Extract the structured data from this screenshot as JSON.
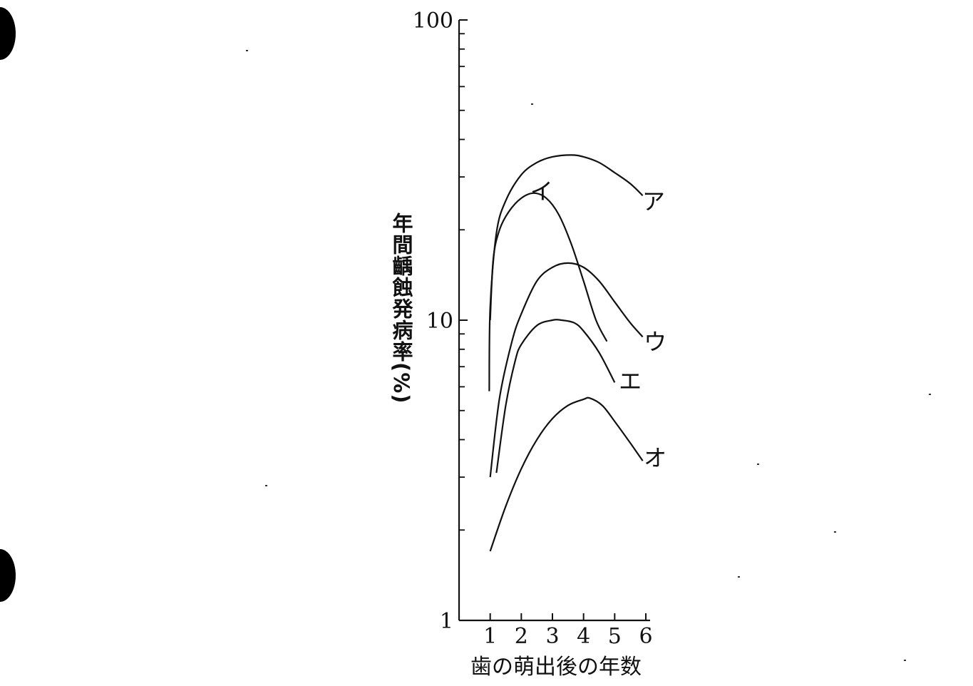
{
  "chart_data": {
    "type": "line",
    "title": "",
    "xlabel": "歯の萌出後の年数",
    "ylabel": "年間齲蝕発病率(%)",
    "y_scale": "log",
    "ylim": [
      1,
      100
    ],
    "xlim": [
      0,
      6.1
    ],
    "x_ticks": [
      1,
      2,
      3,
      4,
      5,
      6
    ],
    "x_tick_labels": [
      "1",
      "2",
      "3",
      "4",
      "5",
      "6"
    ],
    "y_tick_labels": [
      {
        "value": 1,
        "label": "1"
      },
      {
        "value": 10,
        "label": "10"
      },
      {
        "value": 100,
        "label": "100"
      }
    ],
    "y_minor_ticks": [
      2,
      3,
      4,
      5,
      6,
      7,
      8,
      9,
      20,
      30,
      40,
      50,
      60,
      70,
      80,
      90
    ],
    "grid": false,
    "series": [
      {
        "name": "ア",
        "x": [
          0.97,
          1.0,
          1.2,
          1.5,
          2.0,
          2.5,
          3.0,
          3.6,
          4.0,
          4.5,
          5.0,
          5.5,
          5.9
        ],
        "y": [
          5.8,
          11.0,
          19.5,
          25.0,
          30.5,
          33.5,
          35.0,
          35.5,
          35.0,
          33.5,
          31.0,
          28.5,
          26.0
        ]
      },
      {
        "name": "イ",
        "x": [
          1.0,
          1.1,
          1.3,
          1.6,
          2.0,
          2.4,
          2.8,
          3.2,
          3.6,
          4.0,
          4.4,
          4.75
        ],
        "y": [
          10.0,
          16.0,
          20.0,
          23.0,
          25.5,
          26.5,
          25.5,
          22.5,
          18.0,
          13.5,
          10.0,
          8.5
        ]
      },
      {
        "name": "ウ",
        "x": [
          1.0,
          1.3,
          1.7,
          2.0,
          2.5,
          3.0,
          3.5,
          4.0,
          4.5,
          5.0,
          5.5,
          5.9
        ],
        "y": [
          3.0,
          5.5,
          8.5,
          10.5,
          13.5,
          15.0,
          15.5,
          15.0,
          13.5,
          11.5,
          9.8,
          8.8
        ]
      },
      {
        "name": "エ",
        "x": [
          1.2,
          1.5,
          1.8,
          2.0,
          2.5,
          3.0,
          3.3,
          3.7,
          4.0,
          4.5,
          5.0
        ],
        "y": [
          3.1,
          5.2,
          7.3,
          8.3,
          9.6,
          10.0,
          10.0,
          9.8,
          9.2,
          7.8,
          6.2
        ]
      },
      {
        "name": "オ",
        "x": [
          1.0,
          1.5,
          2.0,
          2.5,
          3.0,
          3.5,
          4.0,
          4.2,
          4.6,
          5.0,
          5.5,
          5.9
        ],
        "y": [
          1.7,
          2.4,
          3.2,
          4.0,
          4.7,
          5.2,
          5.45,
          5.5,
          5.2,
          4.6,
          3.9,
          3.4
        ]
      }
    ],
    "series_label_positions_data": [
      {
        "name": "ア",
        "x": 6.25,
        "y": 25.0
      },
      {
        "name": "イ",
        "x": 2.65,
        "y": 27.0
      },
      {
        "name": "ウ",
        "x": 6.3,
        "y": 8.5
      },
      {
        "name": "エ",
        "x": 5.5,
        "y": 6.3
      },
      {
        "name": "オ",
        "x": 6.3,
        "y": 3.5
      }
    ],
    "colors": {
      "line": "#111111",
      "axis": "#111111"
    }
  }
}
